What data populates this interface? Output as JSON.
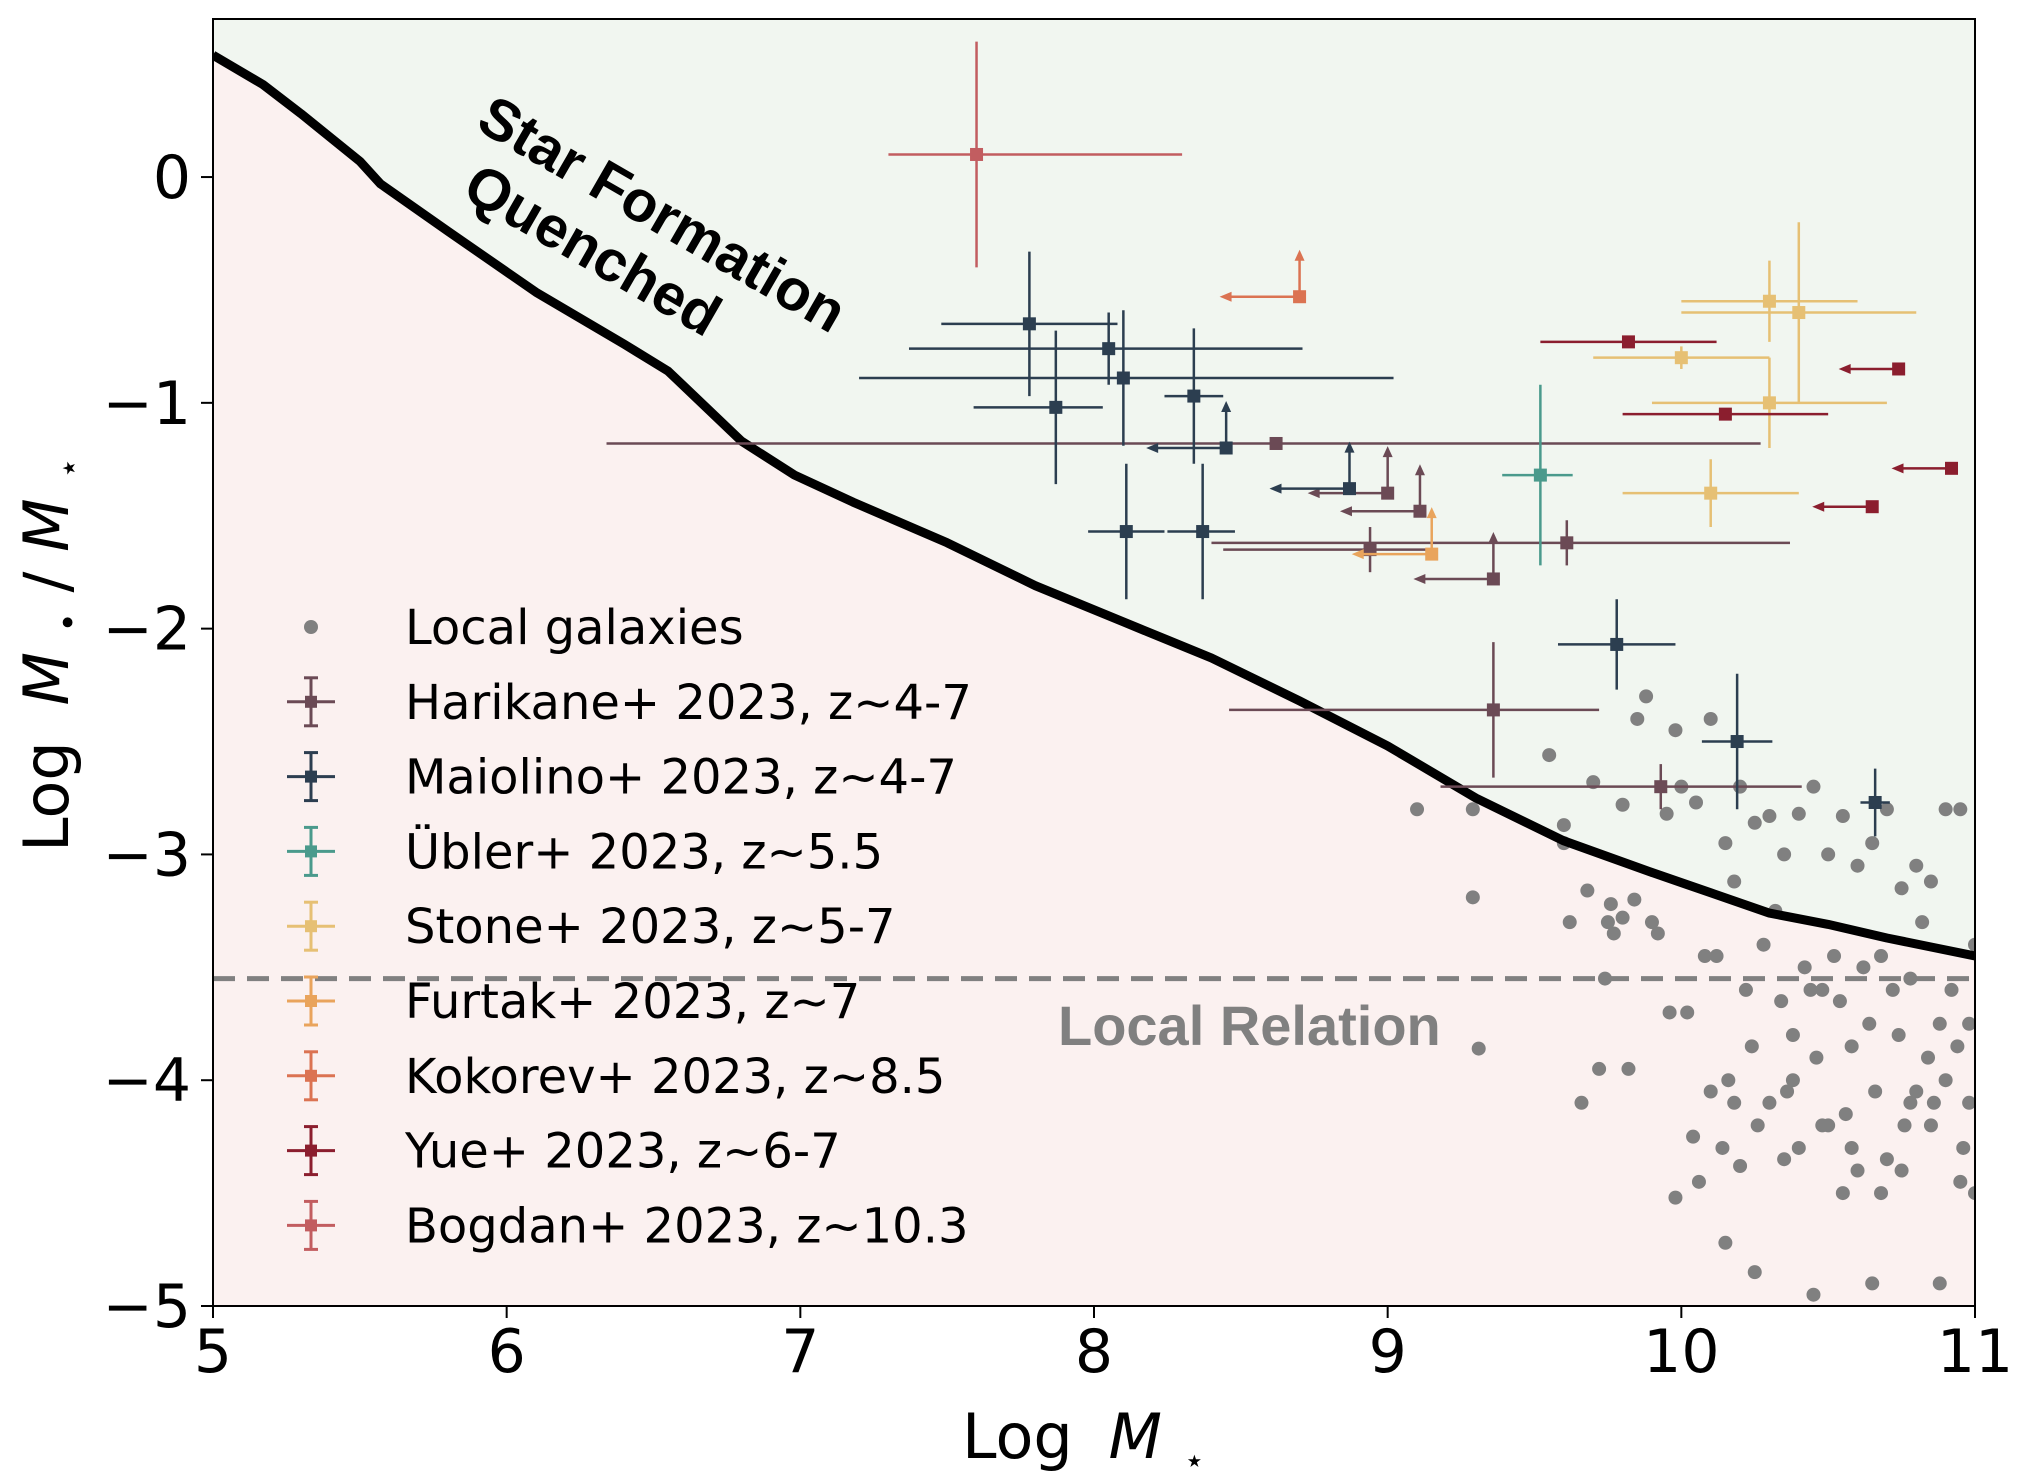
{
  "chart_data": {
    "type": "scatter",
    "xlabel_text": "Log",
    "xlabel_sym": "M",
    "xlabel_sub": "⋆",
    "ylabel_text": "Log",
    "ylabel_sym_1": "M",
    "ylabel_sub_1": "•",
    "ylabel_slash": "/",
    "ylabel_sym_2": "M",
    "ylabel_sub_2": "⋆",
    "xlim": [
      5,
      11
    ],
    "ylim": [
      -5,
      0.7
    ],
    "xticks": [
      5,
      6,
      7,
      8,
      9,
      10,
      11
    ],
    "xtick_labels": [
      "5",
      "6",
      "7",
      "8",
      "9",
      "10",
      "11"
    ],
    "yticks": [
      0,
      -1,
      -2,
      -3,
      -4,
      -5
    ],
    "ytick_labels": [
      "0",
      "−1",
      "−2",
      "−3",
      "−4",
      "−5"
    ],
    "annotations": {
      "quenched_line1": "Star Formation",
      "quenched_line2": "Quenched",
      "local_relation": "Local Relation"
    },
    "colors": {
      "quenched_region": "#f1f6f0",
      "below_region": "#fbf1f0",
      "boundary": "#000000",
      "local_line": "#808080",
      "local_points": "#808080"
    },
    "boundary_curve": {
      "x": [
        5.0,
        5.17,
        5.3,
        5.5,
        5.57,
        5.8,
        6.0,
        6.1,
        6.4,
        6.55,
        6.8,
        6.98,
        7.18,
        7.5,
        7.8,
        8.1,
        8.4,
        8.7,
        9.0,
        9.3,
        9.6,
        9.9,
        10.1,
        10.3,
        10.5,
        10.7,
        10.85,
        11.0
      ],
      "y": [
        0.54,
        0.41,
        0.28,
        0.07,
        -0.03,
        -0.24,
        -0.42,
        -0.51,
        -0.74,
        -0.86,
        -1.17,
        -1.32,
        -1.44,
        -1.62,
        -1.81,
        -1.97,
        -2.13,
        -2.32,
        -2.52,
        -2.75,
        -2.94,
        -3.08,
        -3.17,
        -3.26,
        -3.31,
        -3.37,
        -3.41,
        -3.45
      ]
    },
    "local_relation_y": -3.55,
    "legend": [
      {
        "label": "Local galaxies",
        "color": "#808080",
        "kind": "dot"
      },
      {
        "label": "Harikane+ 2023, z~4-7",
        "color": "#6b4a55",
        "kind": "err"
      },
      {
        "label": "Maiolino+ 2023, z~4-7",
        "color": "#2c3e50",
        "kind": "err"
      },
      {
        "label": "Übler+ 2023, z~5.5",
        "color": "#4a9a8c",
        "kind": "err"
      },
      {
        "label": "Stone+ 2023, z~5-7",
        "color": "#e6c074",
        "kind": "err"
      },
      {
        "label": "Furtak+ 2023, z~7",
        "color": "#e9a45c",
        "kind": "err"
      },
      {
        "label": "Kokorev+ 2023, z~8.5",
        "color": "#db7352",
        "kind": "err"
      },
      {
        "label": "Yue+ 2023, z~6-7",
        "color": "#8b1e2e",
        "kind": "err"
      },
      {
        "label": "Bogdan+ 2023, z~10.3",
        "color": "#c25d60",
        "kind": "err"
      }
    ],
    "series": [
      {
        "name": "Harikane+ 2023, z~4-7",
        "color": "#6b4a55",
        "points": [
          {
            "x": 8.62,
            "y": -1.18,
            "xerr": [
              2.28,
              1.65
            ],
            "yerr": [
              0,
              0
            ]
          },
          {
            "x": 9.0,
            "y": -1.4,
            "uplimit": true,
            "lolimit": true
          },
          {
            "x": 9.11,
            "y": -1.48,
            "uplimit": true,
            "lolimit": true
          },
          {
            "x": 8.94,
            "y": -1.65,
            "xerr": [
              0.5,
              0.2
            ],
            "yerr": [
              0.1,
              0.1
            ]
          },
          {
            "x": 9.36,
            "y": -1.78,
            "uplimit": true,
            "lolimit": true
          },
          {
            "x": 9.61,
            "y": -1.62,
            "xerr": [
              1.21,
              0.76
            ],
            "yerr": [
              0.1,
              0.1
            ]
          },
          {
            "x": 9.36,
            "y": -2.36,
            "xerr": [
              0.9,
              0.36
            ],
            "yerr": [
              0.3,
              0.3
            ]
          },
          {
            "x": 9.93,
            "y": -2.7,
            "xerr": [
              0.75,
              0.48
            ],
            "yerr": [
              0.1,
              0.1
            ]
          }
        ]
      },
      {
        "name": "Maiolino+ 2023, z~4-7",
        "color": "#2c3e50",
        "points": [
          {
            "x": 7.78,
            "y": -0.65,
            "xerr": [
              0.3,
              0.3
            ],
            "yerr": [
              0.32,
              0.32
            ]
          },
          {
            "x": 7.87,
            "y": -1.02,
            "xerr": [
              0.28,
              0.16
            ],
            "yerr": [
              0.34,
              0.34
            ]
          },
          {
            "x": 8.05,
            "y": -0.76,
            "xerr": [
              0.68,
              0.66
            ],
            "yerr": [
              0.16,
              0.16
            ]
          },
          {
            "x": 8.1,
            "y": -0.89,
            "xerr": [
              0.9,
              0.92
            ],
            "yerr": [
              0.3,
              0.3
            ]
          },
          {
            "x": 8.34,
            "y": -0.97,
            "xerr": [
              0.1,
              0.1
            ],
            "yerr": [
              0.3,
              0.3
            ]
          },
          {
            "x": 8.45,
            "y": -1.2,
            "uplimit": true,
            "lolimit": true
          },
          {
            "x": 8.11,
            "y": -1.57,
            "xerr": [
              0.13,
              0.13
            ],
            "yerr": [
              0.3,
              0.3
            ]
          },
          {
            "x": 8.37,
            "y": -1.57,
            "xerr": [
              0.12,
              0.11
            ],
            "yerr": [
              0.3,
              0.3
            ]
          },
          {
            "x": 8.87,
            "y": -1.38,
            "uplimit": true,
            "lolimit": true
          },
          {
            "x": 9.78,
            "y": -2.07,
            "xerr": [
              0.2,
              0.2
            ],
            "yerr": [
              0.2,
              0.2
            ]
          },
          {
            "x": 10.19,
            "y": -2.5,
            "xerr": [
              0.12,
              0.12
            ],
            "yerr": [
              0.3,
              0.3
            ]
          },
          {
            "x": 10.66,
            "y": -2.77,
            "xerr": [
              0.05,
              0.05
            ],
            "yerr": [
              0.15,
              0.15
            ]
          }
        ]
      },
      {
        "name": "Übler+ 2023, z~5.5",
        "color": "#4a9a8c",
        "points": [
          {
            "x": 9.52,
            "y": -1.32,
            "xerr": [
              0.13,
              0.11
            ],
            "yerr": [
              0.4,
              0.4
            ]
          }
        ]
      },
      {
        "name": "Stone+ 2023, z~5-7",
        "color": "#e6c074",
        "points": [
          {
            "x": 10.3,
            "y": -0.55,
            "xerr": [
              0.3,
              0.3
            ],
            "yerr": [
              0.18,
              0.18
            ]
          },
          {
            "x": 10.4,
            "y": -0.6,
            "xerr": [
              0.4,
              0.4
            ],
            "yerr": [
              0.4,
              0.4
            ]
          },
          {
            "x": 10.0,
            "y": -0.8,
            "xerr": [
              0.3,
              0.3
            ],
            "yerr": [
              0.05,
              0.05
            ]
          },
          {
            "x": 10.3,
            "y": -1.0,
            "xerr": [
              0.4,
              0.4
            ],
            "yerr": [
              0.2,
              0.2
            ]
          },
          {
            "x": 10.1,
            "y": -1.4,
            "xerr": [
              0.3,
              0.3
            ],
            "yerr": [
              0.15,
              0.15
            ]
          }
        ]
      },
      {
        "name": "Furtak+ 2023, z~7",
        "color": "#e9a45c",
        "points": [
          {
            "x": 9.15,
            "y": -1.67,
            "uplimit": true,
            "lolimit": true
          }
        ]
      },
      {
        "name": "Kokorev+ 2023, z~8.5",
        "color": "#db7352",
        "points": [
          {
            "x": 8.7,
            "y": -0.53,
            "uplimit": true,
            "lolimit": true
          }
        ]
      },
      {
        "name": "Yue+ 2023, z~6-7",
        "color": "#8b1e2e",
        "points": [
          {
            "x": 9.82,
            "y": -0.73,
            "xerr": [
              0.3,
              0.3
            ],
            "yerr": [
              0,
              0
            ]
          },
          {
            "x": 10.15,
            "y": -1.05,
            "xerr": [
              0.35,
              0.35
            ],
            "yerr": [
              0,
              0
            ]
          },
          {
            "x": 10.74,
            "y": -0.85,
            "uplimit": true
          },
          {
            "x": 10.65,
            "y": -1.46,
            "uplimit": true
          },
          {
            "x": 10.92,
            "y": -1.29,
            "uplimit": true
          }
        ]
      },
      {
        "name": "Bogdan+ 2023, z~10.3",
        "color": "#c25d60",
        "points": [
          {
            "x": 7.6,
            "y": 0.1,
            "xerr": [
              0.3,
              0.7
            ],
            "yerr": [
              0.5,
              0.5
            ]
          }
        ]
      }
    ],
    "local_galaxies": {
      "x": [
        9.1,
        9.29,
        9.29,
        9.31,
        9.55,
        9.6,
        9.6,
        9.62,
        9.68,
        9.7,
        9.75,
        9.77,
        9.8,
        9.84,
        9.85,
        9.9,
        9.95,
        9.98,
        10.0,
        10.05,
        10.1,
        10.15,
        10.2,
        10.25,
        10.3,
        10.35,
        10.4,
        10.45,
        10.5,
        10.55,
        10.6,
        10.65,
        10.7,
        10.75,
        10.8,
        10.85,
        10.9,
        10.95,
        11.0,
        9.72,
        9.76,
        9.8,
        9.88,
        9.92,
        10.02,
        10.08,
        10.12,
        10.18,
        10.22,
        10.28,
        10.32,
        10.38,
        10.42,
        10.48,
        10.52,
        10.58,
        10.62,
        10.68,
        10.72,
        10.78,
        10.82,
        10.88,
        10.92,
        10.98,
        9.66,
        9.74,
        9.82,
        9.96,
        10.04,
        10.14,
        10.24,
        10.34,
        10.44,
        10.54,
        10.64,
        10.74,
        10.84,
        10.94,
        10.06,
        10.16,
        10.26,
        10.36,
        10.46,
        10.56,
        10.66,
        10.76,
        10.86,
        10.96,
        10.1,
        10.3,
        10.5,
        10.7,
        10.9,
        10.2,
        10.4,
        10.6,
        10.8,
        11.0,
        10.15,
        10.35,
        10.55,
        10.75,
        10.95,
        10.25,
        10.45,
        10.65,
        10.85,
        9.98,
        10.38,
        10.58,
        10.78,
        10.98,
        10.18,
        10.48,
        10.68,
        10.88
      ],
      "y": [
        -2.8,
        -2.8,
        -3.19,
        -3.86,
        -2.56,
        -2.87,
        -2.95,
        -3.3,
        -3.16,
        -2.68,
        -3.3,
        -3.35,
        -2.78,
        -3.2,
        -2.4,
        -3.3,
        -2.82,
        -2.45,
        -2.7,
        -2.77,
        -2.4,
        -2.95,
        -2.7,
        -2.86,
        -2.83,
        -3.0,
        -2.82,
        -2.7,
        -3.0,
        -2.83,
        -3.05,
        -2.95,
        -2.8,
        -3.15,
        -3.05,
        -3.12,
        -2.8,
        -2.8,
        -3.4,
        -3.95,
        -3.22,
        -3.28,
        -2.3,
        -3.35,
        -3.7,
        -3.45,
        -3.45,
        -3.12,
        -3.6,
        -3.4,
        -3.25,
        -3.8,
        -3.5,
        -3.6,
        -3.45,
        -3.85,
        -3.5,
        -3.45,
        -3.6,
        -3.55,
        -3.3,
        -3.75,
        -3.6,
        -3.75,
        -4.1,
        -3.55,
        -3.95,
        -3.7,
        -4.25,
        -4.3,
        -3.85,
        -3.65,
        -3.6,
        -3.65,
        -3.75,
        -3.8,
        -3.9,
        -3.85,
        -4.45,
        -4.0,
        -4.2,
        -4.05,
        -3.9,
        -4.15,
        -4.05,
        -4.2,
        -4.1,
        -4.3,
        -4.05,
        -4.1,
        -4.2,
        -4.35,
        -4.0,
        -4.38,
        -4.3,
        -4.4,
        -4.05,
        -4.5,
        -4.72,
        -4.35,
        -4.5,
        -4.4,
        -4.45,
        -4.85,
        -4.95,
        -4.9,
        -4.2,
        -4.52,
        -4.0,
        -4.3,
        -4.1,
        -4.1,
        -4.1,
        -4.2,
        -4.5,
        -4.9
      ]
    }
  }
}
